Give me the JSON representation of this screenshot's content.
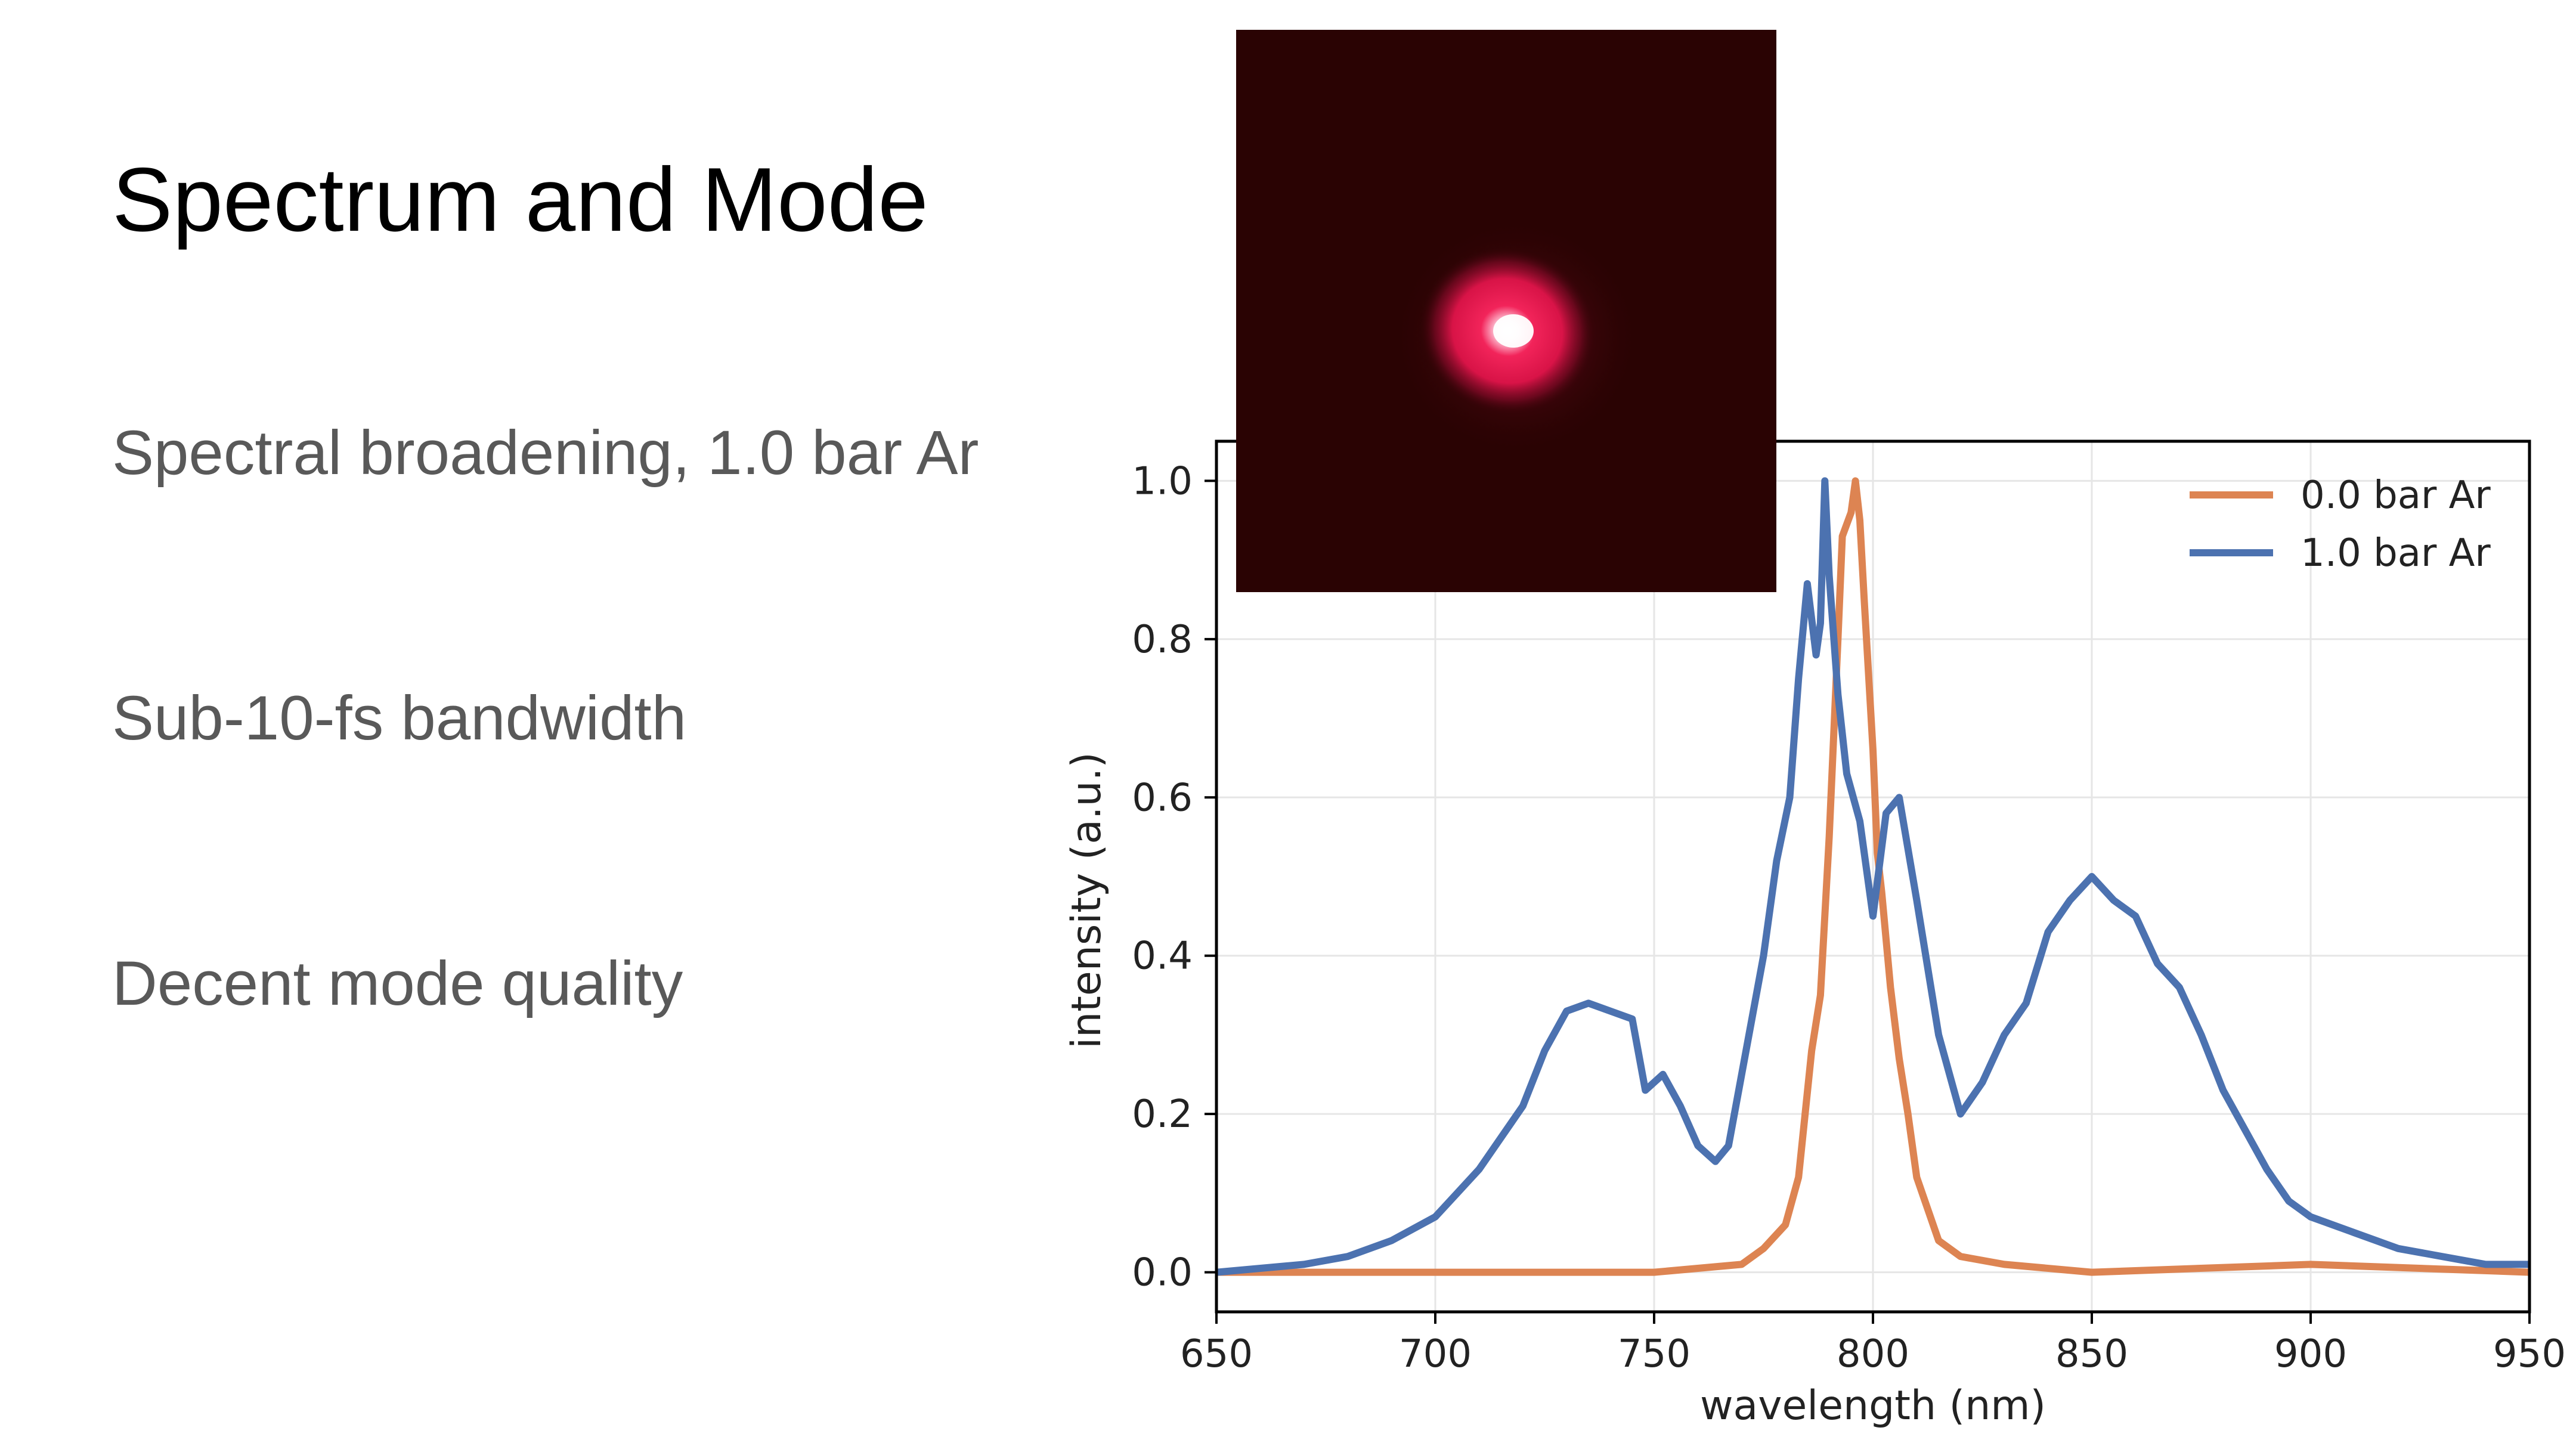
{
  "slide": {
    "title": "Spectrum and Mode",
    "bullets": [
      "Spectral broadening, 1.0 bar Ar",
      "Sub-10-fs bandwidth",
      "Decent mode quality"
    ]
  },
  "chart_data": {
    "type": "line",
    "xlabel": "wavelength (nm)",
    "ylabel": "intensity (a.u.)",
    "xlim": [
      650,
      950
    ],
    "ylim": [
      -0.05,
      1.05
    ],
    "xticks": [
      650,
      700,
      750,
      800,
      850,
      900,
      950
    ],
    "xtick_labels": [
      "650",
      "700",
      "750",
      "800",
      "850",
      "900",
      "950"
    ],
    "yticks": [
      0.0,
      0.2,
      0.4,
      0.6,
      0.8,
      1.0
    ],
    "ytick_labels": [
      "0.0",
      "0.2",
      "0.4",
      "0.6",
      "0.8",
      "1.0"
    ],
    "grid": true,
    "legend_position": "top-right",
    "series": [
      {
        "name": "0.0 bar Ar",
        "color": "#dd8452",
        "x": [
          650,
          700,
          750,
          770,
          775,
          780,
          783,
          786,
          788,
          790,
          792,
          793,
          795,
          796,
          797,
          798,
          800,
          801,
          802,
          804,
          806,
          808,
          810,
          815,
          820,
          830,
          850,
          900,
          950
        ],
        "y": [
          0.0,
          0.0,
          0.0,
          0.01,
          0.03,
          0.06,
          0.12,
          0.28,
          0.35,
          0.55,
          0.8,
          0.93,
          0.96,
          1.0,
          0.95,
          0.85,
          0.66,
          0.53,
          0.48,
          0.36,
          0.27,
          0.2,
          0.12,
          0.04,
          0.02,
          0.01,
          0.0,
          0.01,
          0.0
        ]
      },
      {
        "name": "1.0 bar Ar",
        "color": "#4c72b0",
        "x": [
          650,
          670,
          680,
          690,
          700,
          705,
          710,
          720,
          725,
          730,
          735,
          740,
          745,
          748,
          752,
          756,
          760,
          764,
          767,
          770,
          775,
          778,
          781,
          783,
          785,
          787,
          788,
          789,
          790,
          792,
          794,
          797,
          800,
          803,
          806,
          810,
          815,
          820,
          825,
          830,
          835,
          840,
          845,
          850,
          855,
          860,
          865,
          870,
          875,
          880,
          885,
          890,
          895,
          900,
          910,
          920,
          930,
          940,
          950
        ],
        "y": [
          0.0,
          0.01,
          0.02,
          0.04,
          0.07,
          0.1,
          0.13,
          0.21,
          0.28,
          0.33,
          0.34,
          0.33,
          0.32,
          0.23,
          0.25,
          0.21,
          0.16,
          0.14,
          0.16,
          0.25,
          0.4,
          0.52,
          0.6,
          0.75,
          0.87,
          0.78,
          0.82,
          1.0,
          0.88,
          0.73,
          0.63,
          0.57,
          0.45,
          0.58,
          0.6,
          0.47,
          0.3,
          0.2,
          0.24,
          0.3,
          0.34,
          0.43,
          0.47,
          0.5,
          0.47,
          0.45,
          0.39,
          0.36,
          0.3,
          0.23,
          0.18,
          0.13,
          0.09,
          0.07,
          0.05,
          0.03,
          0.02,
          0.01,
          0.01
        ]
      }
    ]
  }
}
